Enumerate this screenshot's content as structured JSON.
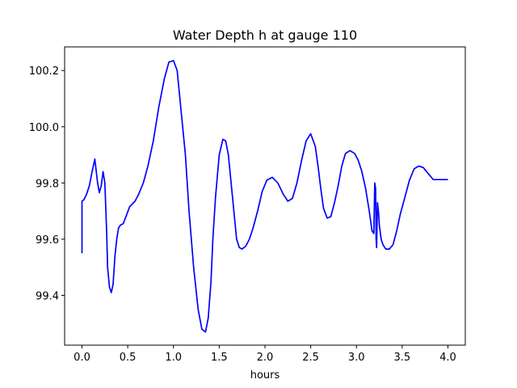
{
  "chart_data": {
    "type": "line",
    "title": "Water Depth h at gauge 110",
    "xlabel": "hours",
    "ylabel": "",
    "xlim": [
      -0.19,
      4.19
    ],
    "ylim": [
      99.223,
      100.284
    ],
    "xticks": [
      0.0,
      0.5,
      1.0,
      1.5,
      2.0,
      2.5,
      3.0,
      3.5,
      4.0
    ],
    "xtick_labels": [
      "0.0",
      "0.5",
      "1.0",
      "1.5",
      "2.0",
      "2.5",
      "3.0",
      "3.5",
      "4.0"
    ],
    "yticks": [
      99.4,
      99.6,
      99.8,
      100.0,
      100.2
    ],
    "ytick_labels": [
      "99.4",
      "99.6",
      "99.8",
      "100.0",
      "100.2"
    ],
    "grid": false,
    "legend": "none",
    "series": [
      {
        "color": "#0000ff",
        "x": [
          0.0,
          0.0,
          0.02,
          0.05,
          0.08,
          0.11,
          0.14,
          0.17,
          0.19,
          0.21,
          0.23,
          0.25,
          0.27,
          0.28,
          0.3,
          0.32,
          0.34,
          0.36,
          0.38,
          0.4,
          0.42,
          0.45,
          0.48,
          0.52,
          0.55,
          0.58,
          0.62,
          0.67,
          0.72,
          0.78,
          0.84,
          0.9,
          0.95,
          1.0,
          1.04,
          1.07,
          1.1,
          1.13,
          1.17,
          1.22,
          1.27,
          1.31,
          1.35,
          1.38,
          1.41,
          1.43,
          1.46,
          1.5,
          1.54,
          1.57,
          1.6,
          1.63,
          1.66,
          1.69,
          1.72,
          1.75,
          1.79,
          1.83,
          1.87,
          1.92,
          1.97,
          2.02,
          2.08,
          2.14,
          2.2,
          2.25,
          2.3,
          2.35,
          2.4,
          2.45,
          2.5,
          2.55,
          2.58,
          2.61,
          2.64,
          2.68,
          2.72,
          2.76,
          2.8,
          2.84,
          2.88,
          2.93,
          2.98,
          3.02,
          3.06,
          3.1,
          3.14,
          3.17,
          3.19,
          3.2,
          3.21,
          3.215,
          3.22,
          3.23,
          3.24,
          3.245,
          3.25,
          3.26,
          3.27,
          3.29,
          3.32,
          3.36,
          3.4,
          3.44,
          3.48,
          3.53,
          3.58,
          3.63,
          3.68,
          3.73,
          3.78,
          3.84,
          3.9,
          3.95,
          4.0
        ],
        "y": [
          99.55,
          99.735,
          99.74,
          99.76,
          99.79,
          99.84,
          99.885,
          99.8,
          99.765,
          99.79,
          99.84,
          99.8,
          99.62,
          99.5,
          99.43,
          99.41,
          99.44,
          99.54,
          99.6,
          99.64,
          99.65,
          99.655,
          99.68,
          99.715,
          99.725,
          99.735,
          99.76,
          99.8,
          99.86,
          99.95,
          100.07,
          100.17,
          100.23,
          100.235,
          100.2,
          100.1,
          100.0,
          99.9,
          99.7,
          99.5,
          99.35,
          99.28,
          99.27,
          99.32,
          99.45,
          99.6,
          99.75,
          99.9,
          99.955,
          99.95,
          99.9,
          99.8,
          99.7,
          99.6,
          99.57,
          99.565,
          99.575,
          99.6,
          99.64,
          99.7,
          99.77,
          99.81,
          99.82,
          99.8,
          99.76,
          99.735,
          99.745,
          99.8,
          99.88,
          99.95,
          99.975,
          99.93,
          99.86,
          99.78,
          99.71,
          99.675,
          99.68,
          99.73,
          99.79,
          99.86,
          99.905,
          99.915,
          99.905,
          99.88,
          99.84,
          99.78,
          99.7,
          99.63,
          99.62,
          99.8,
          99.78,
          99.6,
          99.57,
          99.73,
          99.7,
          99.68,
          99.65,
          99.625,
          99.6,
          99.58,
          99.565,
          99.565,
          99.58,
          99.63,
          99.69,
          99.75,
          99.81,
          99.85,
          99.86,
          99.855,
          99.835,
          99.812,
          99.812,
          99.812,
          99.812
        ]
      }
    ]
  }
}
